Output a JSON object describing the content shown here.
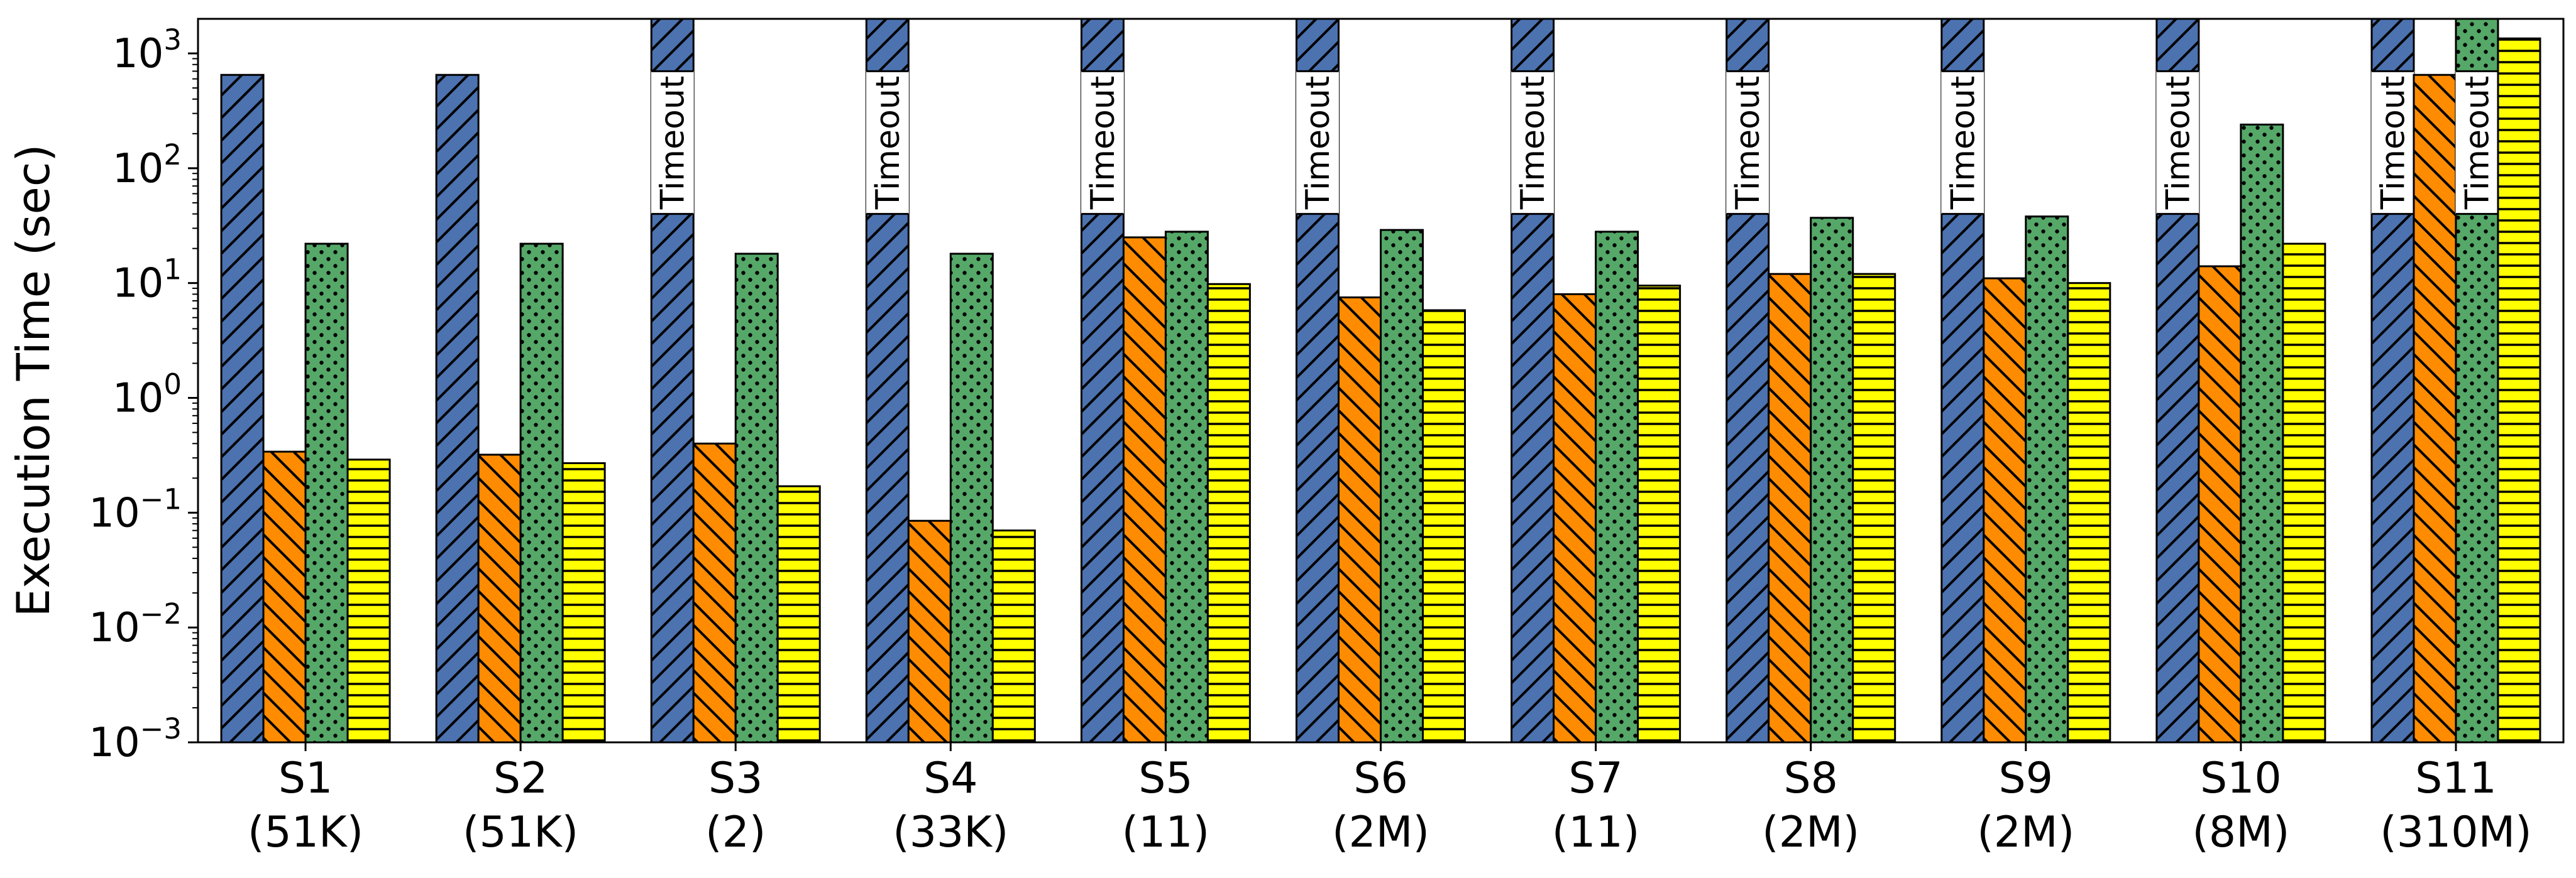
{
  "chart_data": {
    "type": "bar",
    "scale": "log",
    "ylabel": "Execution Time (sec)",
    "ylim": [
      0.001,
      2000
    ],
    "yticks": [
      {
        "value": 0.001,
        "base": "10",
        "exp": "−3"
      },
      {
        "value": 0.01,
        "base": "10",
        "exp": "−2"
      },
      {
        "value": 0.1,
        "base": "10",
        "exp": "−1"
      },
      {
        "value": 1,
        "base": "10",
        "exp": "0"
      },
      {
        "value": 10,
        "base": "10",
        "exp": "1"
      },
      {
        "value": 100,
        "base": "10",
        "exp": "2"
      },
      {
        "value": 1000,
        "base": "10",
        "exp": "3"
      }
    ],
    "categories": [
      {
        "name": "S1",
        "size": "(51K)"
      },
      {
        "name": "S2",
        "size": "(51K)"
      },
      {
        "name": "S3",
        "size": "(2)"
      },
      {
        "name": "S4",
        "size": "(33K)"
      },
      {
        "name": "S5",
        "size": "(11)"
      },
      {
        "name": "S6",
        "size": "(2M)"
      },
      {
        "name": "S7",
        "size": "(11)"
      },
      {
        "name": "S8",
        "size": "(2M)"
      },
      {
        "name": "S9",
        "size": "(2M)"
      },
      {
        "name": "S10",
        "size": "(8M)"
      },
      {
        "name": "S11",
        "size": "(310M)"
      }
    ],
    "timeout_text": "Timeout",
    "series": [
      {
        "color": "#4c72b0",
        "hatch": "diag-up",
        "values": [
          650,
          650,
          null,
          null,
          null,
          null,
          null,
          null,
          null,
          null,
          null
        ],
        "timeout": [
          false,
          false,
          true,
          true,
          true,
          true,
          true,
          true,
          true,
          true,
          true
        ]
      },
      {
        "color": "#ff8c00",
        "hatch": "diag-down",
        "values": [
          0.34,
          0.32,
          0.4,
          0.085,
          25,
          7.5,
          8,
          12,
          11,
          14,
          650
        ],
        "timeout": [
          false,
          false,
          false,
          false,
          false,
          false,
          false,
          false,
          false,
          false,
          false
        ]
      },
      {
        "color": "#55a868",
        "hatch": "dots",
        "values": [
          22,
          22,
          18,
          18,
          28,
          29,
          28,
          37,
          38,
          240,
          null
        ],
        "timeout": [
          false,
          false,
          false,
          false,
          false,
          false,
          false,
          false,
          false,
          false,
          true
        ]
      },
      {
        "color": "#ffff00",
        "hatch": "horizontal",
        "values": [
          0.29,
          0.27,
          0.17,
          0.07,
          9.8,
          5.8,
          9.5,
          12,
          10,
          22,
          1350
        ],
        "timeout": [
          false,
          false,
          false,
          false,
          false,
          false,
          false,
          false,
          false,
          false,
          false
        ]
      }
    ]
  }
}
